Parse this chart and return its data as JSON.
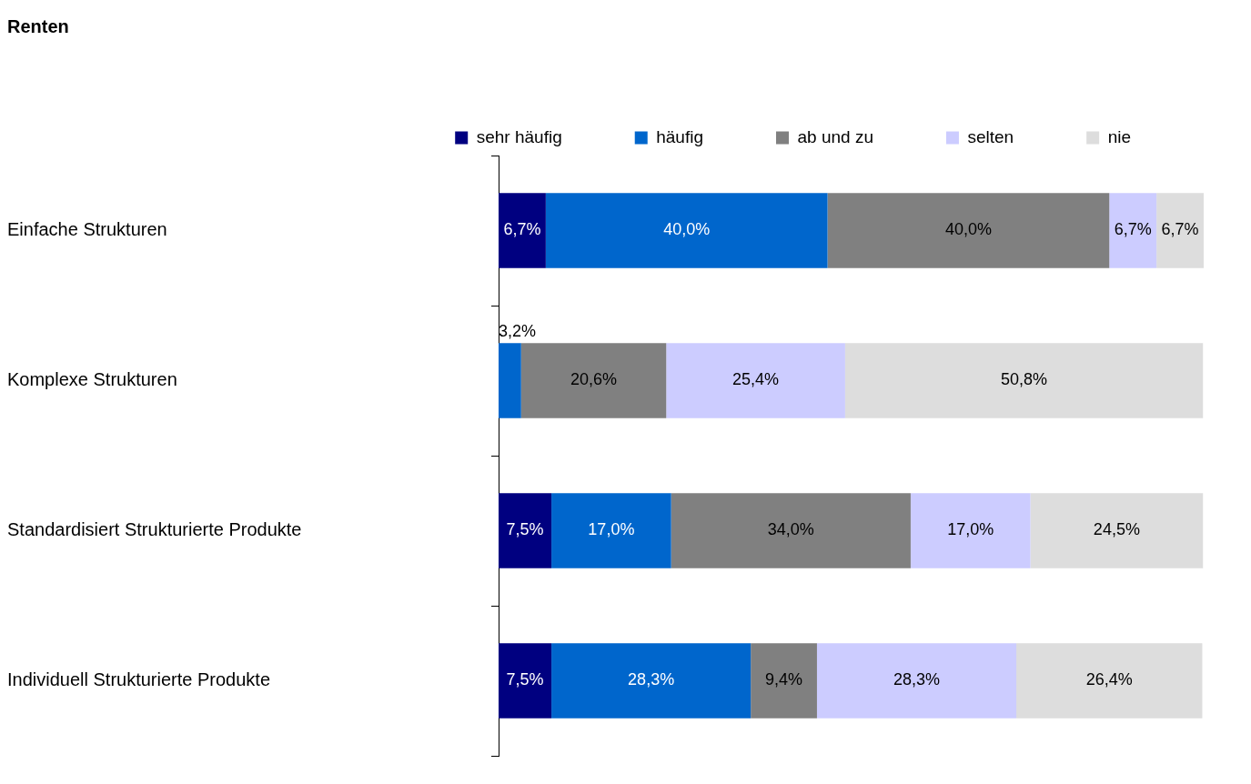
{
  "chart_data": {
    "type": "bar",
    "orientation": "horizontal",
    "stacked": true,
    "title": "Renten",
    "categories": [
      "Einfache Strukturen",
      "Komplexe Strukturen",
      "Standardisiert Strukturierte Produkte",
      "Individuell Strukturierte Produkte"
    ],
    "series": [
      {
        "name": "sehr häufig",
        "color": "#000080",
        "values": [
          6.7,
          null,
          7.5,
          7.5
        ],
        "value_labels": [
          "6,7%",
          null,
          "7,5%",
          "7,5%"
        ]
      },
      {
        "name": "häufig",
        "color": "#0066cc",
        "values": [
          40.0,
          3.2,
          17.0,
          28.3
        ],
        "value_labels": [
          "40,0%",
          "3,2%",
          "17,0%",
          "28,3%"
        ]
      },
      {
        "name": "ab und zu",
        "color": "#808080",
        "values": [
          40.0,
          20.6,
          34.0,
          9.4
        ],
        "value_labels": [
          "40,0%",
          "20,6%",
          "34,0%",
          "9,4%"
        ]
      },
      {
        "name": "selten",
        "color": "#ccccff",
        "values": [
          6.7,
          25.4,
          17.0,
          28.3
        ],
        "value_labels": [
          "6,7%",
          "25,4%",
          "17,0%",
          "28,3%"
        ]
      },
      {
        "name": "nie",
        "color": "#dddddd",
        "values": [
          6.7,
          50.8,
          24.5,
          26.4
        ],
        "value_labels": [
          "6,7%",
          "50,8%",
          "24,5%",
          "26,4%"
        ]
      }
    ],
    "legend": "top",
    "grid": false,
    "tick_labels": "y"
  }
}
